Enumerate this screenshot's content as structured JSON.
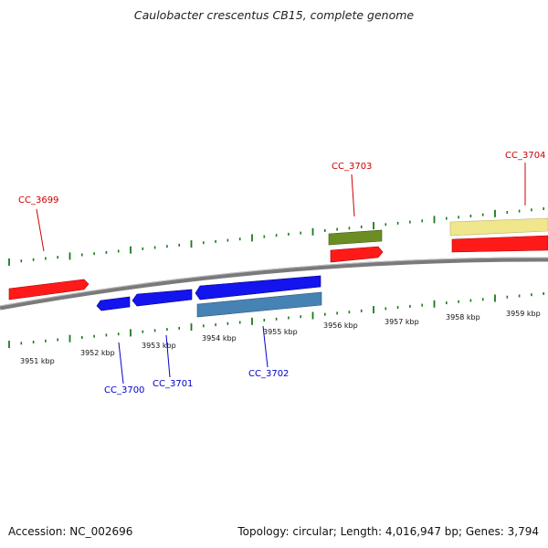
{
  "title": "Caulobacter crescentus CB15, complete genome",
  "footer": {
    "accession": "Accession: NC_002696",
    "summary": "Topology: circular; Length: 4,016,947 bp; Genes: 3,794"
  },
  "colors": {
    "forward_gene": "#ff0000",
    "reverse_gene": "#0000ee",
    "forward_label": "#cc0000",
    "reverse_label": "#0000cc",
    "tick": "#1a7a1a",
    "backbone": "#7f7f7f",
    "olive_feature": "#6b8e23",
    "steel_feature": "#4682b4",
    "khaki_feature": "#f0e68c"
  },
  "scale_labels": [
    "3951 kbp",
    "3952 kbp",
    "3953 kbp",
    "3954 kbp",
    "3955 kbp",
    "3956 kbp",
    "3957 kbp",
    "3958 kbp",
    "3959 kbp"
  ],
  "forward_genes": [
    "CC_3699",
    "CC_3703",
    "CC_3704"
  ],
  "reverse_genes": [
    "CC_3700",
    "CC_3701",
    "CC_3702"
  ]
}
